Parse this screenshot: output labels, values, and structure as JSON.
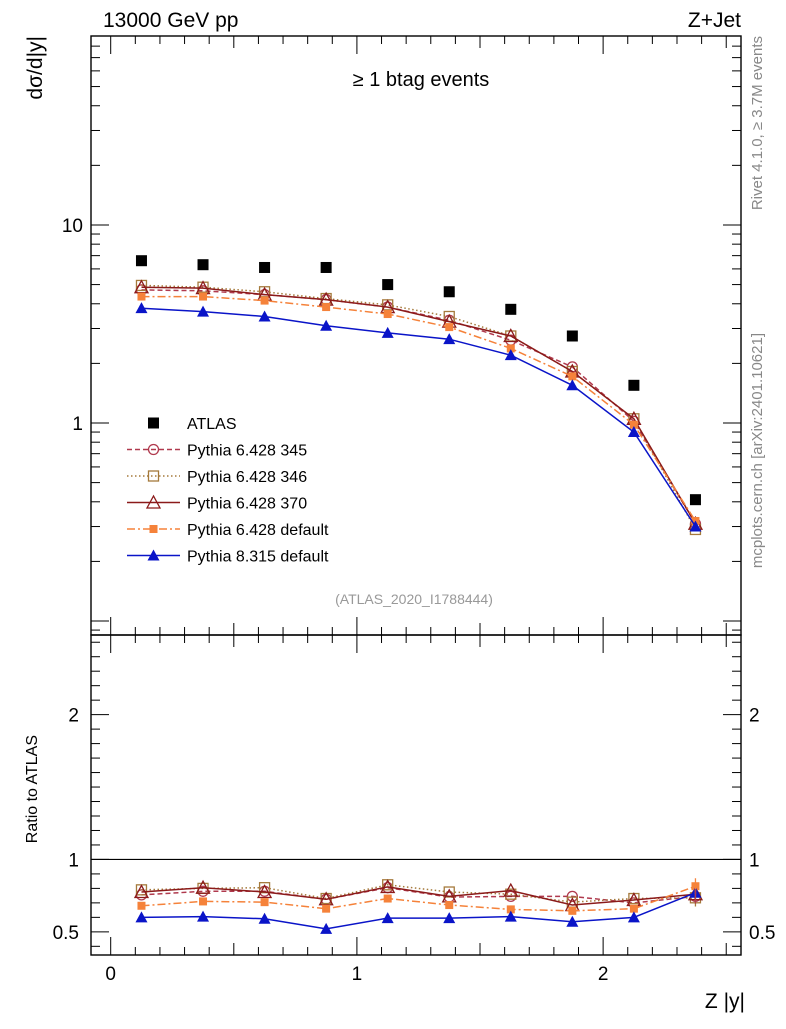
{
  "header": {
    "left_label": "13000 GeV pp",
    "right_label": "Z+Jet"
  },
  "side_labels": {
    "rivet": "Rivet 4.1.0, ≥ 3.7M events",
    "mcplots": "mcplots.cern.ch [arXiv:2401.10621]"
  },
  "colors": {
    "atlas": "#000000",
    "py345": "#b03a4e",
    "py346": "#a57a3c",
    "py370": "#8b1a1a",
    "pydef": "#f5823a",
    "py8": "#0a14c8"
  },
  "chart_data": [
    {
      "type": "scatter",
      "panel": "main",
      "title": "≥ 1 btag events",
      "analysis_tag": "(ATLAS_2020_I1788444)",
      "ylabel": "dσ/d|y|",
      "xlabel": "",
      "yscale": "log",
      "xlim": [
        -0.08,
        2.56
      ],
      "ylim": [
        0.085,
        90
      ],
      "yticks": [
        1,
        10
      ],
      "yticklabels": [
        "1",
        "10"
      ],
      "x": [
        0.125,
        0.375,
        0.625,
        0.875,
        1.125,
        1.375,
        1.625,
        1.875,
        2.125,
        2.375
      ],
      "series": [
        {
          "name": "ATLAS",
          "key": "atlas",
          "marker": "square",
          "line": "none",
          "values": [
            6.6,
            6.3,
            6.1,
            6.1,
            5.0,
            4.6,
            3.75,
            2.75,
            1.55,
            0.41
          ]
        },
        {
          "name": "Pythia 6.428 345",
          "key": "py345",
          "marker": "circle-open",
          "line": "dashed",
          "values": [
            4.7,
            4.65,
            4.45,
            4.2,
            3.85,
            3.3,
            2.62,
            1.92,
            1.02,
            0.31
          ]
        },
        {
          "name": "Pythia 6.428 346",
          "key": "py346",
          "marker": "square-open",
          "line": "dotted",
          "values": [
            4.95,
            4.85,
            4.6,
            4.25,
            3.95,
            3.45,
            2.75,
            1.82,
            1.05,
            0.29
          ]
        },
        {
          "name": "Pythia 6.428 370",
          "key": "py370",
          "marker": "triangle-open",
          "line": "solid",
          "values": [
            4.85,
            4.8,
            4.45,
            4.2,
            3.85,
            3.25,
            2.75,
            1.82,
            1.05,
            0.31
          ]
        },
        {
          "name": "Pythia 6.428 default",
          "key": "pydef",
          "marker": "square-small",
          "line": "dashdot",
          "values": [
            4.35,
            4.35,
            4.15,
            3.85,
            3.55,
            3.05,
            2.38,
            1.72,
            0.98,
            0.32
          ]
        },
        {
          "name": "Pythia 8.315 default",
          "key": "py8",
          "marker": "triangle",
          "line": "solid",
          "values": [
            3.8,
            3.65,
            3.45,
            3.1,
            2.85,
            2.65,
            2.2,
            1.55,
            0.9,
            0.3
          ]
        }
      ]
    },
    {
      "type": "scatter",
      "panel": "ratio",
      "ylabel": "Ratio to ATLAS",
      "xlabel": "Z |y|",
      "yscale": "linear",
      "xlim": [
        -0.08,
        2.56
      ],
      "ylim": [
        0.34,
        2.55
      ],
      "yticks": [
        0.5,
        1,
        2
      ],
      "yticklabels": [
        "0.5",
        "1",
        "2"
      ],
      "xticks": [
        0,
        1,
        2
      ],
      "xticklabels": [
        "0",
        "1",
        "2"
      ],
      "reference_line": 1,
      "x": [
        0.125,
        0.375,
        0.625,
        0.875,
        1.125,
        1.375,
        1.625,
        1.875,
        2.125,
        2.375
      ],
      "series": [
        {
          "name": "Pythia 6.428 345",
          "key": "py345",
          "marker": "circle-open",
          "line": "dashed",
          "values": [
            0.755,
            0.78,
            0.78,
            0.725,
            0.805,
            0.74,
            0.745,
            0.745,
            0.7,
            0.745
          ]
        },
        {
          "name": "Pythia 6.428 346",
          "key": "py346",
          "marker": "square-open",
          "line": "dotted",
          "values": [
            0.79,
            0.8,
            0.805,
            0.73,
            0.825,
            0.775,
            0.76,
            0.705,
            0.73,
            0.735
          ]
        },
        {
          "name": "Pythia 6.428 370",
          "key": "py370",
          "marker": "triangle-open",
          "line": "solid",
          "values": [
            0.775,
            0.805,
            0.775,
            0.725,
            0.81,
            0.745,
            0.785,
            0.685,
            0.72,
            0.76
          ]
        },
        {
          "name": "Pythia 6.428 default",
          "key": "pydef",
          "marker": "square-small",
          "line": "dashdot",
          "values": [
            0.68,
            0.71,
            0.705,
            0.66,
            0.73,
            0.685,
            0.655,
            0.645,
            0.66,
            0.815
          ]
        },
        {
          "name": "Pythia 8.315 default",
          "key": "py8",
          "marker": "triangle",
          "line": "solid",
          "values": [
            0.6,
            0.605,
            0.59,
            0.52,
            0.595,
            0.595,
            0.605,
            0.57,
            0.6,
            0.77
          ]
        }
      ],
      "error_bars": [
        {
          "key": "py8",
          "index": 7,
          "err": 0.02
        },
        {
          "key": "py8",
          "index": 8,
          "err": 0.03
        },
        {
          "key": "pydef",
          "index": 9,
          "err": 0.055
        },
        {
          "key": "py346",
          "index": 9,
          "err": 0.06
        },
        {
          "key": "py345",
          "index": 9,
          "err": 0.05
        }
      ]
    }
  ]
}
